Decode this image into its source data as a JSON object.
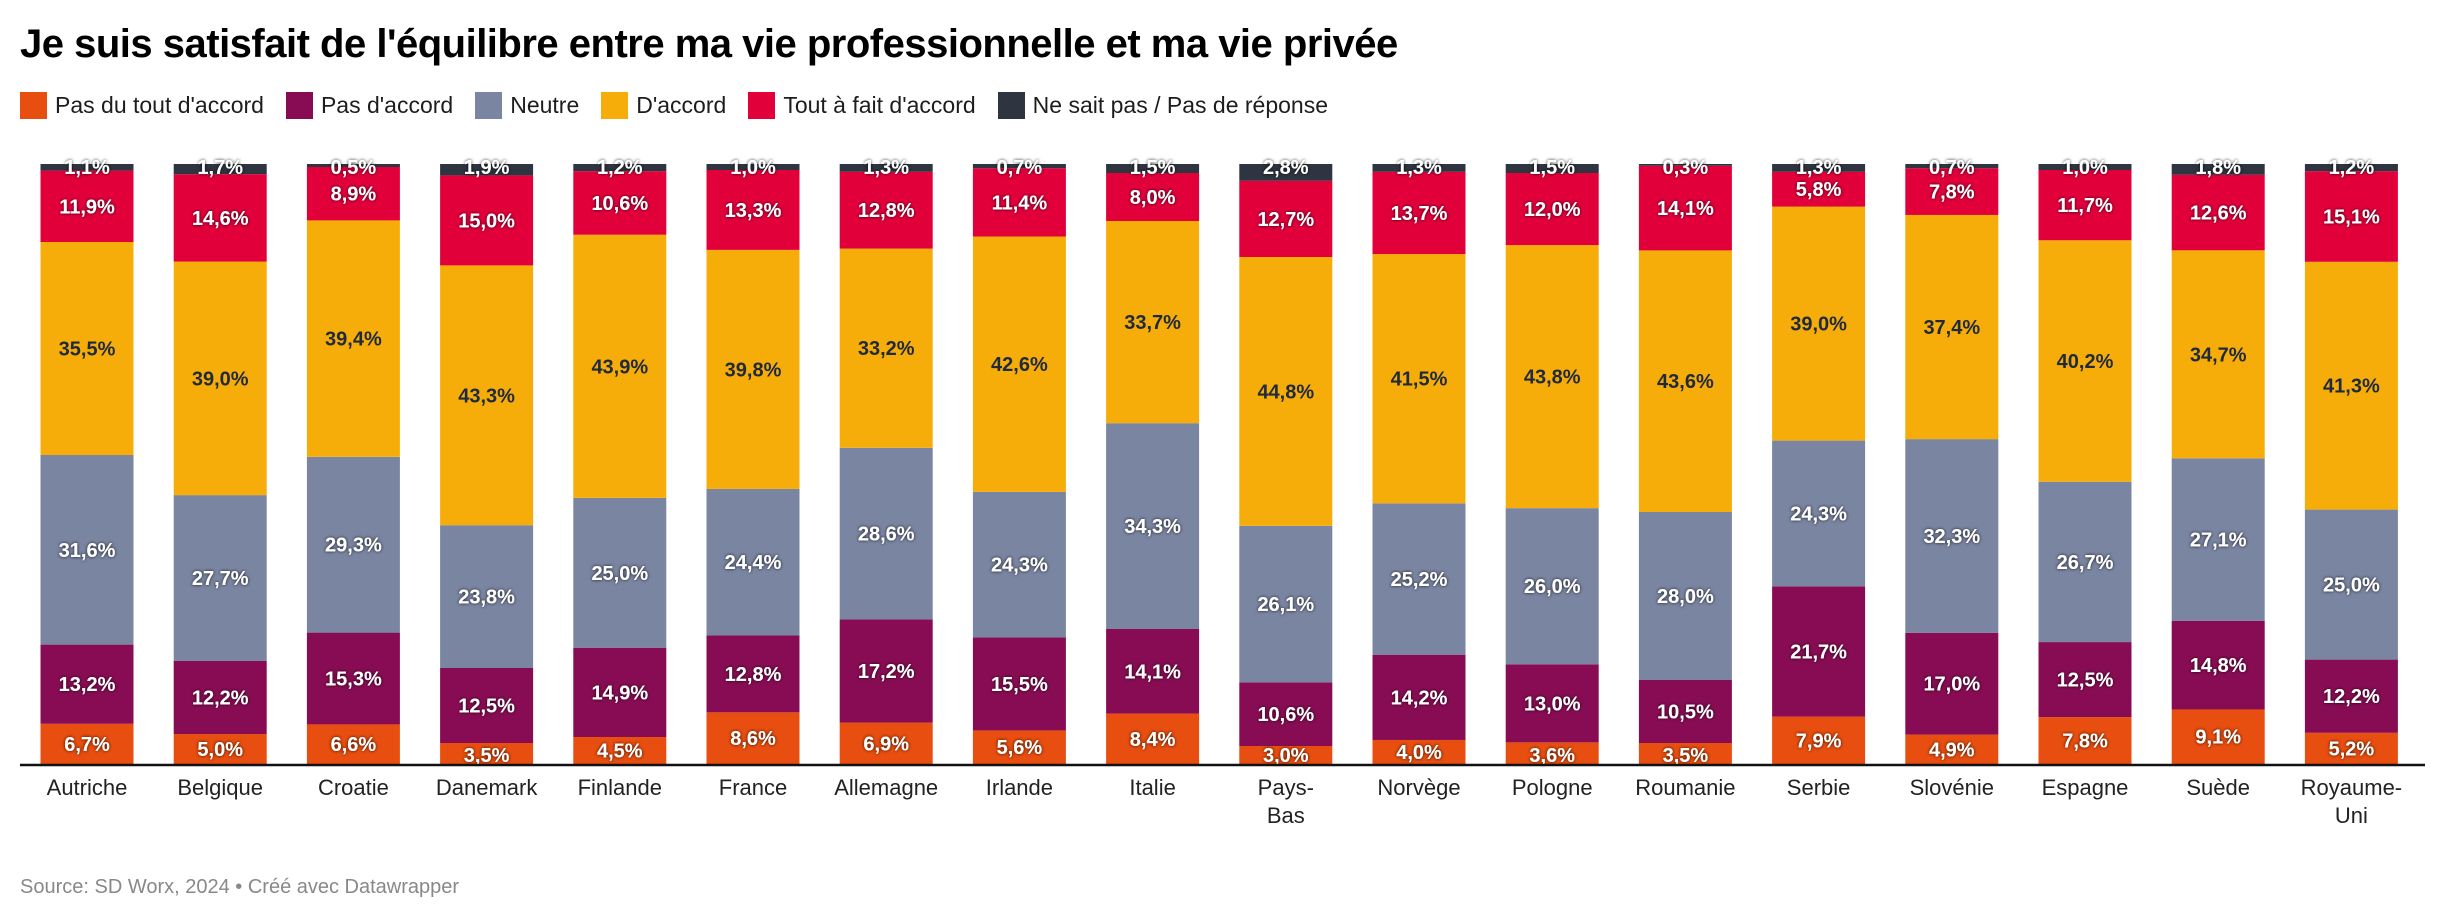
{
  "chart_data": {
    "type": "bar",
    "stacked": true,
    "orientation": "vertical",
    "title": "Je suis satisfait de l'équilibre entre ma vie professionnelle et ma vie privée",
    "ylim": [
      0,
      100
    ],
    "unit": "%",
    "legend_placement": "top-left",
    "grid": false,
    "categories": [
      "Autriche",
      "Belgique",
      "Croatie",
      "Danemark",
      "Finlande",
      "France",
      "Allemagne",
      "Irlande",
      "Italie",
      "Pays-Bas",
      "Norvège",
      "Pologne",
      "Roumanie",
      "Serbie",
      "Slovénie",
      "Espagne",
      "Suède",
      "Royaume-Uni"
    ],
    "series": [
      {
        "name": "Pas du tout d'accord",
        "color": "#e84e0f",
        "values": [
          6.7,
          5.0,
          6.6,
          3.5,
          4.5,
          8.6,
          6.9,
          5.6,
          8.4,
          3.0,
          4.0,
          3.6,
          3.5,
          7.9,
          4.9,
          7.8,
          9.1,
          5.2
        ]
      },
      {
        "name": "Pas d'accord",
        "color": "#880c53",
        "values": [
          13.2,
          12.2,
          15.3,
          12.5,
          14.9,
          12.8,
          17.2,
          15.5,
          14.1,
          10.6,
          14.2,
          13.0,
          10.5,
          21.7,
          17.0,
          12.5,
          14.8,
          12.2
        ]
      },
      {
        "name": "Neutre",
        "color": "#7a85a1",
        "values": [
          31.6,
          27.7,
          29.3,
          23.8,
          25.0,
          24.4,
          28.6,
          24.3,
          34.3,
          26.1,
          25.2,
          26.0,
          28.0,
          24.3,
          32.3,
          26.7,
          27.1,
          25.0
        ]
      },
      {
        "name": "D'accord",
        "color": "#f7ad09",
        "values": [
          35.5,
          39.0,
          39.4,
          43.3,
          43.9,
          39.8,
          33.2,
          42.6,
          33.7,
          44.8,
          41.5,
          43.8,
          43.6,
          39.0,
          37.4,
          40.2,
          34.7,
          41.3
        ]
      },
      {
        "name": "Tout à fait d'accord",
        "color": "#e2003b",
        "values": [
          11.9,
          14.6,
          8.9,
          15.0,
          10.6,
          13.3,
          12.8,
          11.4,
          8.0,
          12.7,
          13.7,
          12.0,
          14.1,
          5.8,
          7.8,
          11.7,
          12.6,
          15.1
        ]
      },
      {
        "name": "Ne sait pas / Pas de réponse",
        "color": "#2e3440",
        "values": [
          1.1,
          1.7,
          0.5,
          1.9,
          1.2,
          1.0,
          1.3,
          0.7,
          1.5,
          2.8,
          1.3,
          1.5,
          0.3,
          1.3,
          0.7,
          1.0,
          1.8,
          1.2
        ]
      }
    ],
    "source": "Source: SD Worx, 2024 • Créé avec Datawrapper"
  }
}
